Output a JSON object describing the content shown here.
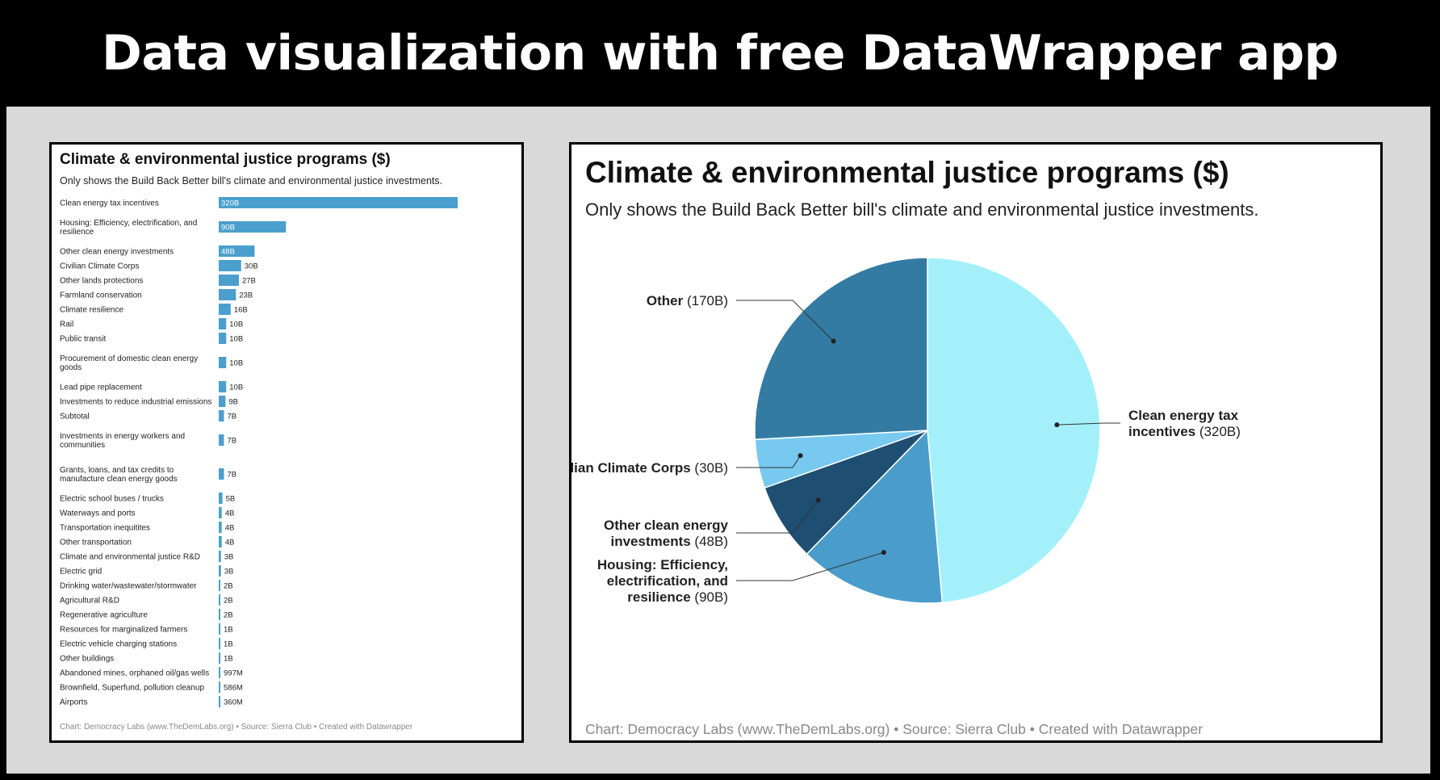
{
  "page": {
    "heading": "Data visualization with free DataWrapper app"
  },
  "colors": {
    "bar": "#4a9fcd",
    "stage": "#d9d9d9",
    "panel_border": "#000000"
  },
  "left_panel": {
    "title": "Climate & environmental justice programs ($)",
    "subtitle": "Only shows the Build Back Better bill's climate and environmental justice investments.",
    "footer": "Chart: Democracy Labs (www.TheDemLabs.org) • Source: Sierra Club • Created with Datawrapper"
  },
  "right_panel": {
    "title": "Climate & environmental justice programs ($)",
    "subtitle": "Only shows the Build Back Better bill's climate and environmental justice investments.",
    "footer": "Chart: Democracy Labs (www.TheDemLabs.org) • Source: Sierra Club • Created with Datawrapper"
  },
  "chart_data": [
    {
      "type": "bar",
      "orientation": "horizontal",
      "title": "Climate & environmental justice programs ($)",
      "subtitle": "Only shows the Build Back Better bill's climate and environmental justice investments.",
      "unit": "billions of dollars",
      "categories": [
        [
          "Clean energy tax incentives"
        ],
        [
          "Housing: Efficiency, electrification, and",
          "resilience"
        ],
        [
          "Other clean energy investments"
        ],
        [
          "Civilian Climate Corps"
        ],
        [
          "Other lands protections"
        ],
        [
          "Farmland conservation"
        ],
        [
          "Climate resilience"
        ],
        [
          "Rail"
        ],
        [
          "Public transit"
        ],
        [
          "Procurement of domestic clean energy",
          "goods"
        ],
        [
          "Lead pipe replacement"
        ],
        [
          "Investments to reduce industrial emissions"
        ],
        [
          "Subtotal"
        ],
        [
          "Investments in energy workers and",
          "communities"
        ],
        [
          "Grants, loans, and tax credits to",
          "manufacture clean energy goods"
        ],
        [
          "Electric school buses / trucks"
        ],
        [
          "Waterways and ports"
        ],
        [
          "Transportation inequitites"
        ],
        [
          "Other transportation"
        ],
        [
          "Climate and environmental justice R&D"
        ],
        [
          "Electric grid"
        ],
        [
          "Drinking water/wastewater/stormwater"
        ],
        [
          "Agricultural R&D"
        ],
        [
          "Regenerative agriculture"
        ],
        [
          "Resources for marginalized farmers"
        ],
        [
          "Electric vehicle charging stations"
        ],
        [
          "Other buildings"
        ],
        [
          "Abandoned mines, orphaned oil/gas wells"
        ],
        [
          "Brownfield, Superfund, pollution cleanup"
        ],
        [
          "Airports"
        ]
      ],
      "values": [
        320,
        90,
        48,
        30,
        27,
        23,
        16,
        10,
        10,
        10,
        10,
        9,
        7,
        7,
        7,
        5,
        4,
        4,
        4,
        3,
        3,
        2,
        2,
        2,
        1,
        1,
        1,
        0.997,
        0.586,
        0.36
      ],
      "labels": [
        "320B",
        "90B",
        "48B",
        "30B",
        "27B",
        "23B",
        "16B",
        "10B",
        "10B",
        "10B",
        "10B",
        "9B",
        "7B",
        "7B",
        "7B",
        "5B",
        "4B",
        "4B",
        "4B",
        "3B",
        "3B",
        "2B",
        "2B",
        "2B",
        "1B",
        "1B",
        "1B",
        "997M",
        "586M",
        "360M"
      ],
      "color": "#4a9fcd",
      "xlim": [
        0,
        320
      ]
    },
    {
      "type": "pie",
      "title": "Climate & environmental justice programs ($)",
      "subtitle": "Only shows the Build Back Better bill's climate and environmental justice investments.",
      "slices": [
        {
          "bold": [
            "Clean energy tax",
            "incentives"
          ],
          "amount": "(320B)",
          "value": 320,
          "color": "#a3f0fb"
        },
        {
          "bold": [
            "Housing: Efficiency,",
            "electrification, and",
            "resilience"
          ],
          "amount": "(90B)",
          "value": 90,
          "color": "#4a9dca"
        },
        {
          "bold": [
            "Other clean energy",
            "investments"
          ],
          "amount": "(48B)",
          "value": 48,
          "color": "#1e4e72"
        },
        {
          "bold": [
            "Civilian Climate Corps"
          ],
          "amount": "(30B)",
          "value": 30,
          "color": "#78c9f0"
        },
        {
          "bold": [
            "Other"
          ],
          "amount": "(170B)",
          "value": 170,
          "color": "#347ba3"
        }
      ]
    }
  ]
}
